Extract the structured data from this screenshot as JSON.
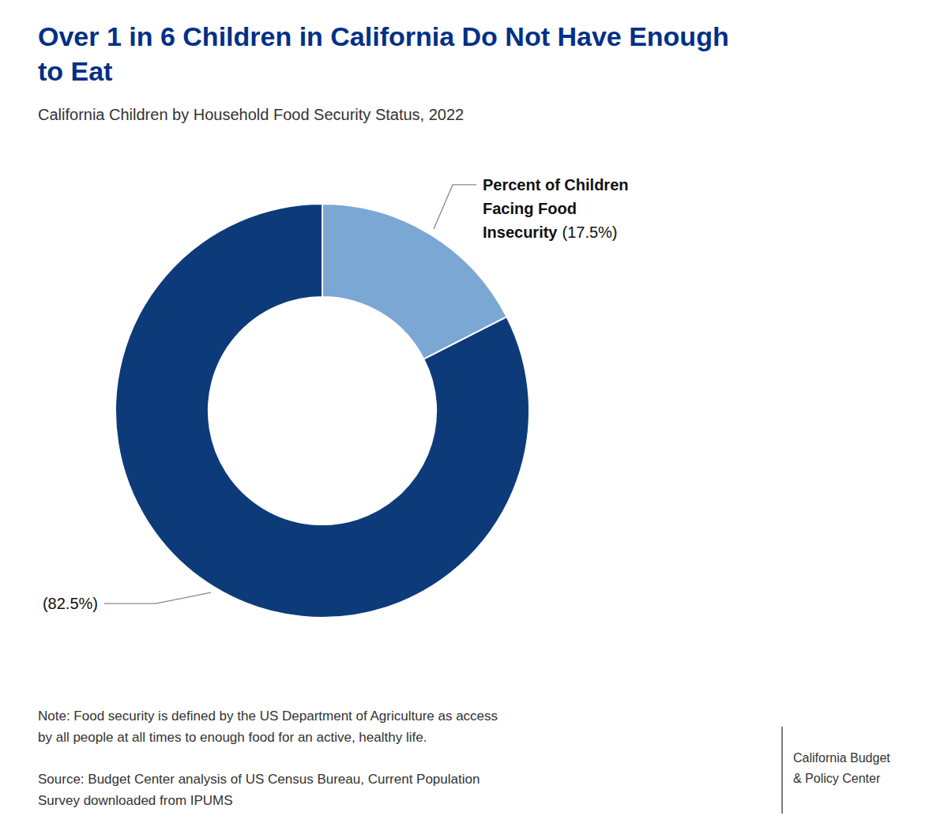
{
  "chart_data": {
    "type": "donut",
    "title": "Over 1 in 6 Children in California Do Not Have Enough\nto Eat",
    "subtitle": "California Children by Household Food Security Status, 2022",
    "categories": [
      "Percent of Children\nFacing Food\nInsecurity",
      null
    ],
    "values": [
      17.5,
      82.5
    ],
    "value_labels": [
      "(17.5%)",
      "(82.5%)"
    ],
    "data_labels": true,
    "colors": [
      "#7ba7d4",
      "#0d3b7a"
    ],
    "notes": [
      "Note: Food security is defined by the US Department of Agriculture as access\nby all people at all times to enough food for an active, healthy life.",
      "Source: Budget Center analysis of US Census Bureau, Current Population\nSurvey downloaded from IPUMS"
    ],
    "logo_text": "California Budget\n& Policy Center"
  }
}
